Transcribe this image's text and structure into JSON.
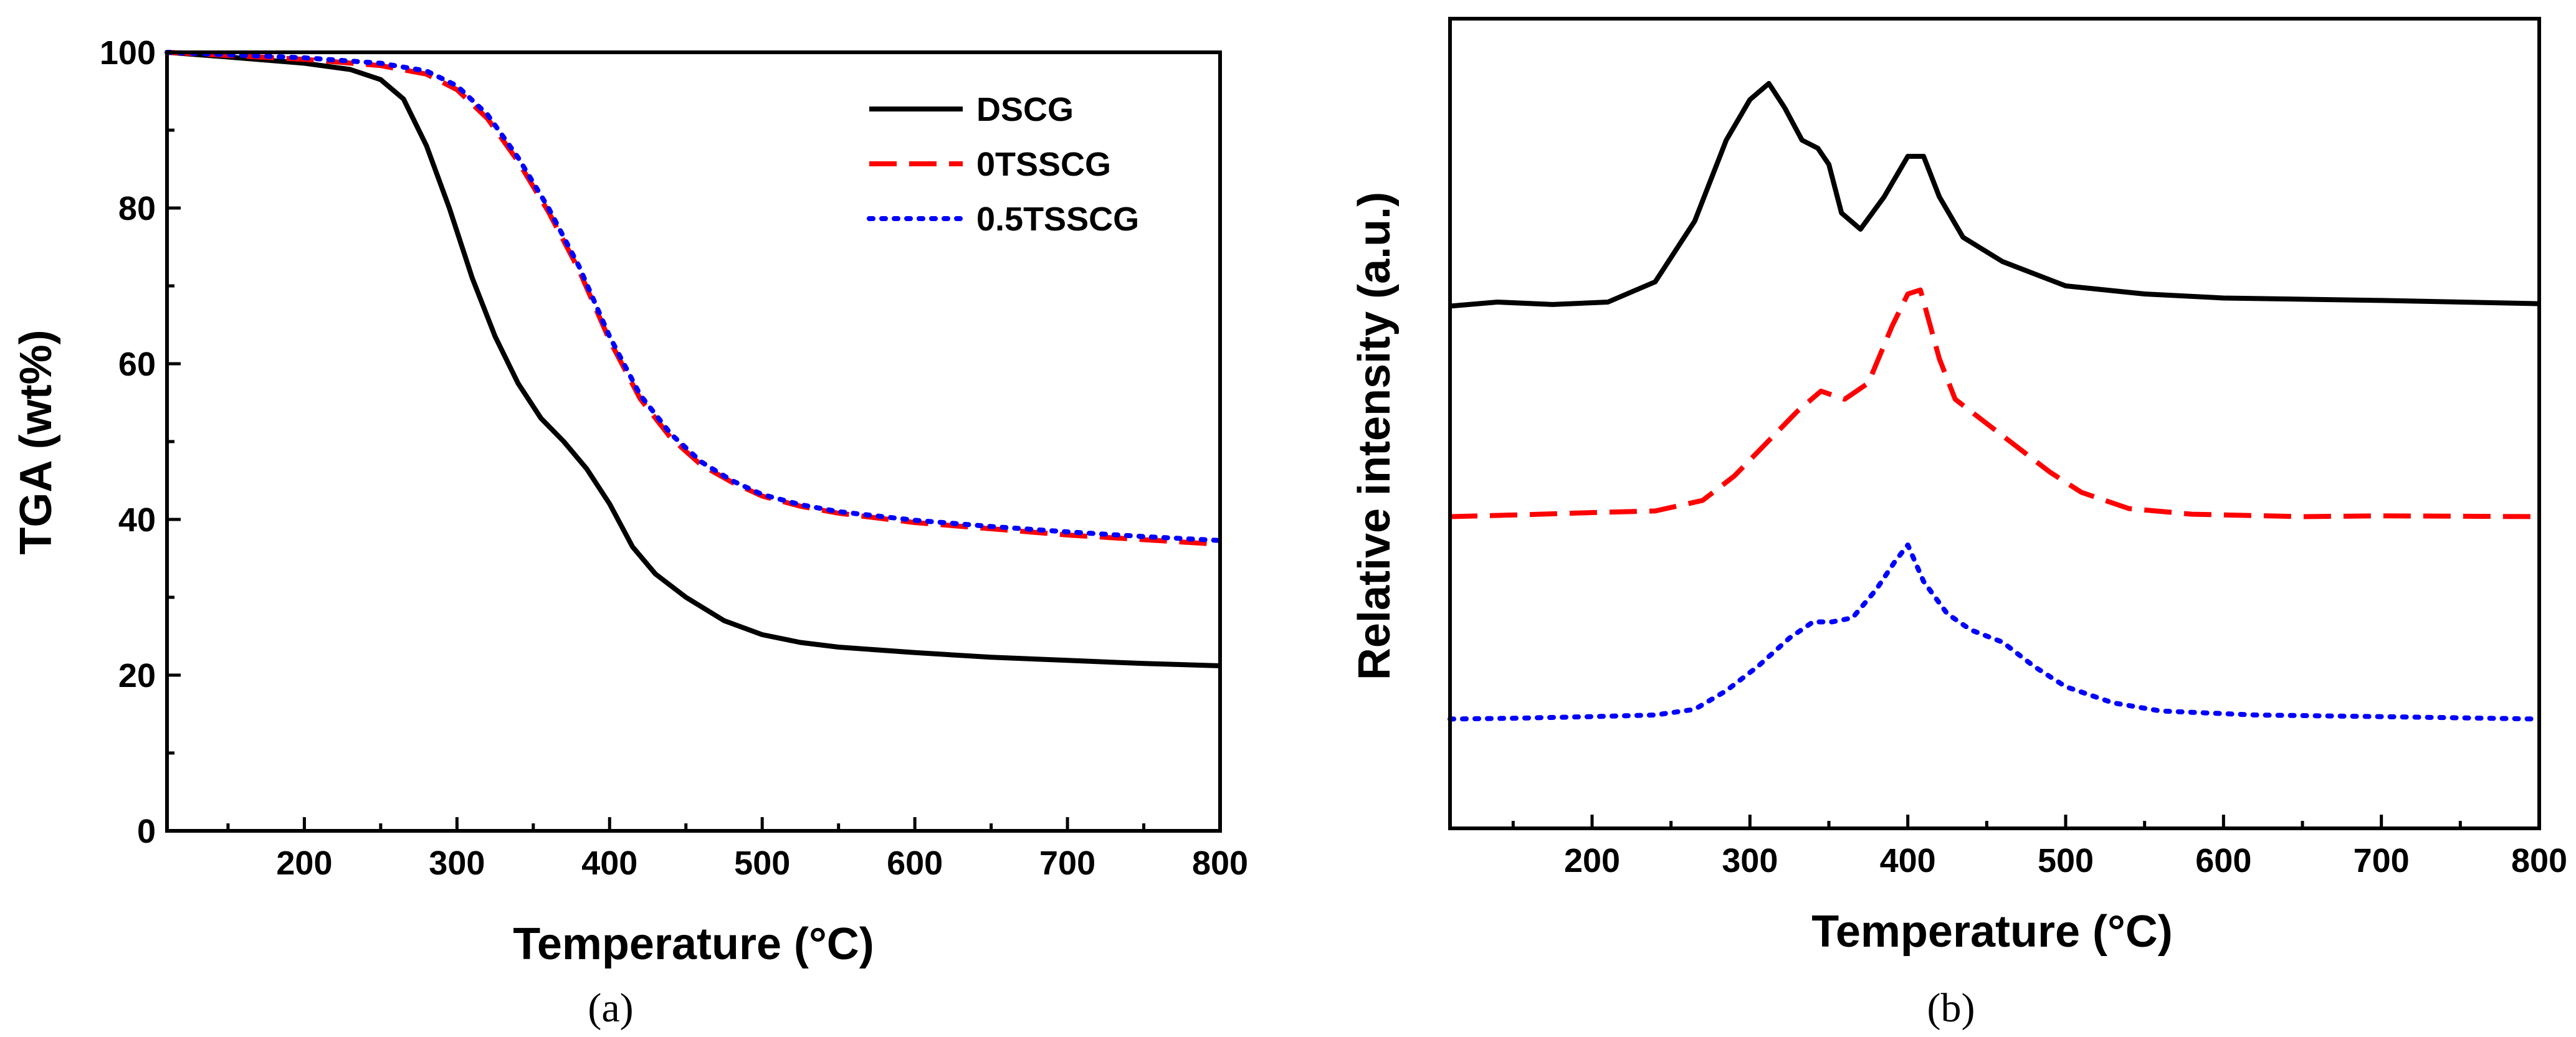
{
  "chart_data": [
    {
      "type": "line",
      "panel_label": "(a)",
      "xlabel": "Temperature (°C)",
      "ylabel": "TGA (wt%)",
      "xlim": [
        110,
        800
      ],
      "ylim": [
        0,
        100
      ],
      "xticks": [
        200,
        300,
        400,
        500,
        600,
        700,
        800
      ],
      "yticks": [
        0,
        20,
        40,
        60,
        80,
        100
      ],
      "legend": "top-right",
      "series": [
        {
          "name": "DSCG",
          "color": "#000000",
          "style": "solid",
          "x": [
            110,
            150,
            200,
            230,
            250,
            265,
            280,
            295,
            310,
            325,
            340,
            355,
            370,
            385,
            400,
            415,
            430,
            450,
            475,
            500,
            525,
            550,
            600,
            650,
            700,
            750,
            800
          ],
          "y": [
            100,
            99.4,
            98.6,
            97.8,
            96.5,
            94,
            88,
            80,
            71,
            63.5,
            57.5,
            53,
            50,
            46.5,
            42,
            36.5,
            33,
            30,
            27,
            25.2,
            24.2,
            23.6,
            22.9,
            22.3,
            21.9,
            21.5,
            21.2
          ]
        },
        {
          "name": "0TSSCG",
          "color": "#ff0000",
          "style": "dashed",
          "x": [
            110,
            150,
            200,
            250,
            280,
            300,
            320,
            340,
            360,
            380,
            400,
            420,
            440,
            460,
            480,
            500,
            525,
            550,
            600,
            650,
            700,
            750,
            800
          ],
          "y": [
            100,
            99.6,
            99.1,
            98.3,
            97.2,
            95.2,
            91.5,
            86,
            79.5,
            72,
            63,
            55.5,
            50.5,
            47,
            44.8,
            43,
            41.7,
            40.8,
            39.6,
            38.8,
            38,
            37.4,
            36.8
          ]
        },
        {
          "name": "0.5TSSCG",
          "color": "#0000ff",
          "style": "dotted",
          "x": [
            110,
            150,
            200,
            250,
            280,
            300,
            320,
            340,
            360,
            380,
            400,
            420,
            440,
            460,
            480,
            500,
            525,
            550,
            600,
            650,
            700,
            750,
            800
          ],
          "y": [
            100,
            99.7,
            99.3,
            98.6,
            97.6,
            95.7,
            92,
            86.5,
            80,
            72.5,
            63.5,
            56,
            51,
            47.4,
            45,
            43.2,
            41.9,
            41,
            39.9,
            39.1,
            38.4,
            37.8,
            37.3
          ]
        }
      ]
    },
    {
      "type": "line",
      "panel_label": "(b)",
      "xlabel": "Temperature (°C)",
      "ylabel": "Relative intensity (a.u.)",
      "xlim": [
        110,
        800
      ],
      "ylim": [
        0,
        100
      ],
      "xticks": [
        200,
        300,
        400,
        500,
        600,
        700,
        800
      ],
      "y_tick_labels": false,
      "series": [
        {
          "name": "DSCG",
          "color": "#000000",
          "style": "solid",
          "x": [
            110,
            140,
            175,
            210,
            240,
            265,
            285,
            300,
            312,
            322,
            333,
            343,
            350,
            358,
            370,
            385,
            400,
            410,
            420,
            435,
            460,
            500,
            550,
            600,
            700,
            800
          ],
          "y": [
            64.5,
            65.0,
            64.7,
            65.0,
            67.5,
            75,
            85,
            90,
            92,
            89,
            85,
            84,
            82,
            76,
            74,
            78,
            83,
            83,
            78,
            73,
            70,
            67,
            66,
            65.5,
            65.2,
            64.8
          ]
        },
        {
          "name": "0TSSCG",
          "color": "#ff0000",
          "style": "dashed",
          "x": [
            110,
            150,
            200,
            240,
            270,
            290,
            310,
            330,
            345,
            360,
            375,
            390,
            400,
            408,
            420,
            430,
            450,
            470,
            490,
            510,
            540,
            580,
            650,
            700,
            800
          ],
          "y": [
            38.5,
            38.7,
            39.0,
            39.2,
            40.5,
            43.5,
            47.5,
            51.5,
            54,
            53,
            55,
            62,
            66,
            66.5,
            58,
            53,
            50,
            47,
            44,
            41.5,
            39.5,
            38.8,
            38.5,
            38.6,
            38.5
          ]
        },
        {
          "name": "0.5TSSCG",
          "color": "#0000ff",
          "style": "dotted",
          "x": [
            110,
            150,
            200,
            240,
            265,
            285,
            305,
            325,
            340,
            352,
            365,
            380,
            392,
            400,
            410,
            425,
            440,
            460,
            480,
            500,
            530,
            560,
            620,
            700,
            800
          ],
          "y": [
            13.5,
            13.6,
            13.8,
            14.0,
            14.7,
            17,
            20,
            23.5,
            25.5,
            25.5,
            26,
            29.5,
            33,
            35,
            30.5,
            26.5,
            24.5,
            23,
            20,
            17.5,
            15.5,
            14.5,
            14.0,
            13.8,
            13.5
          ]
        }
      ]
    }
  ]
}
